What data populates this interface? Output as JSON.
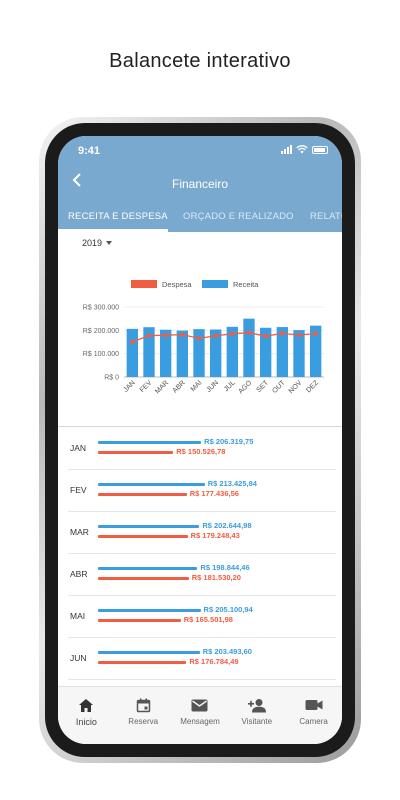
{
  "caption": "Balancete interativo",
  "status": {
    "time": "9:41"
  },
  "appbar": {
    "title": "Financeiro",
    "back_icon": "back-arrow-icon"
  },
  "tabs": [
    {
      "label": "RECEITA E DESPESA",
      "active": true
    },
    {
      "label": "ORÇADO E REALIZADO",
      "active": false
    },
    {
      "label": "RELATÓ",
      "active": false
    }
  ],
  "year": {
    "selected": "2019"
  },
  "colors": {
    "primary": "#7aa9cf",
    "receita": "#3a9de0",
    "despesa": "#f25c41"
  },
  "chart_data": {
    "type": "bar",
    "categories": [
      "JAN",
      "FEV",
      "MAR",
      "ABR",
      "MAI",
      "JUN",
      "JUL",
      "AGO",
      "SET",
      "OUT",
      "NOV",
      "DEZ"
    ],
    "series": [
      {
        "name": "Despesa",
        "type": "line",
        "values": [
          150526.78,
          177436.56,
          179248.43,
          181530.2,
          165501.98,
          176784.49,
          185000,
          190000,
          175000,
          187000,
          180000,
          186000
        ]
      },
      {
        "name": "Receita",
        "type": "bar",
        "values": [
          206319.75,
          213425.84,
          202644.98,
          198844.46,
          205100.94,
          203493.6,
          215000,
          250000,
          211000,
          214000,
          201000,
          220000
        ]
      }
    ],
    "yticks": [
      "R$ 0",
      "R$ 100.000",
      "R$ 200.000",
      "R$ 300.000"
    ],
    "ylim": [
      0,
      300000
    ],
    "legend": "top"
  },
  "list": [
    {
      "month": "JAN",
      "receita": 206319.75,
      "despesa": 150526.78,
      "receita_label": "R$ 206.319,75",
      "despesa_label": "R$ 150.526,78"
    },
    {
      "month": "FEV",
      "receita": 213425.84,
      "despesa": 177436.56,
      "receita_label": "R$ 213.425,84",
      "despesa_label": "R$ 177.436,56"
    },
    {
      "month": "MAR",
      "receita": 202644.98,
      "despesa": 179248.43,
      "receita_label": "R$ 202.644,98",
      "despesa_label": "R$ 179.248,43"
    },
    {
      "month": "ABR",
      "receita": 198844.46,
      "despesa": 181530.2,
      "receita_label": "R$ 198.844,46",
      "despesa_label": "R$ 181.530,20"
    },
    {
      "month": "MAI",
      "receita": 205100.94,
      "despesa": 165501.98,
      "receita_label": "R$ 205.100,94",
      "despesa_label": "R$ 165.501,98"
    },
    {
      "month": "JUN",
      "receita": 203493.6,
      "despesa": 176784.49,
      "receita_label": "R$ 203.493,60",
      "despesa_label": "R$ 176.784,49"
    }
  ],
  "nav": [
    {
      "label": "Inicio",
      "icon": "home-icon",
      "active": true
    },
    {
      "label": "Reserva",
      "icon": "calendar-icon",
      "active": false
    },
    {
      "label": "Mensagem",
      "icon": "mail-icon",
      "active": false
    },
    {
      "label": "Visitante",
      "icon": "add-person-icon",
      "active": false
    },
    {
      "label": "Camera",
      "icon": "video-camera-icon",
      "active": false
    }
  ]
}
